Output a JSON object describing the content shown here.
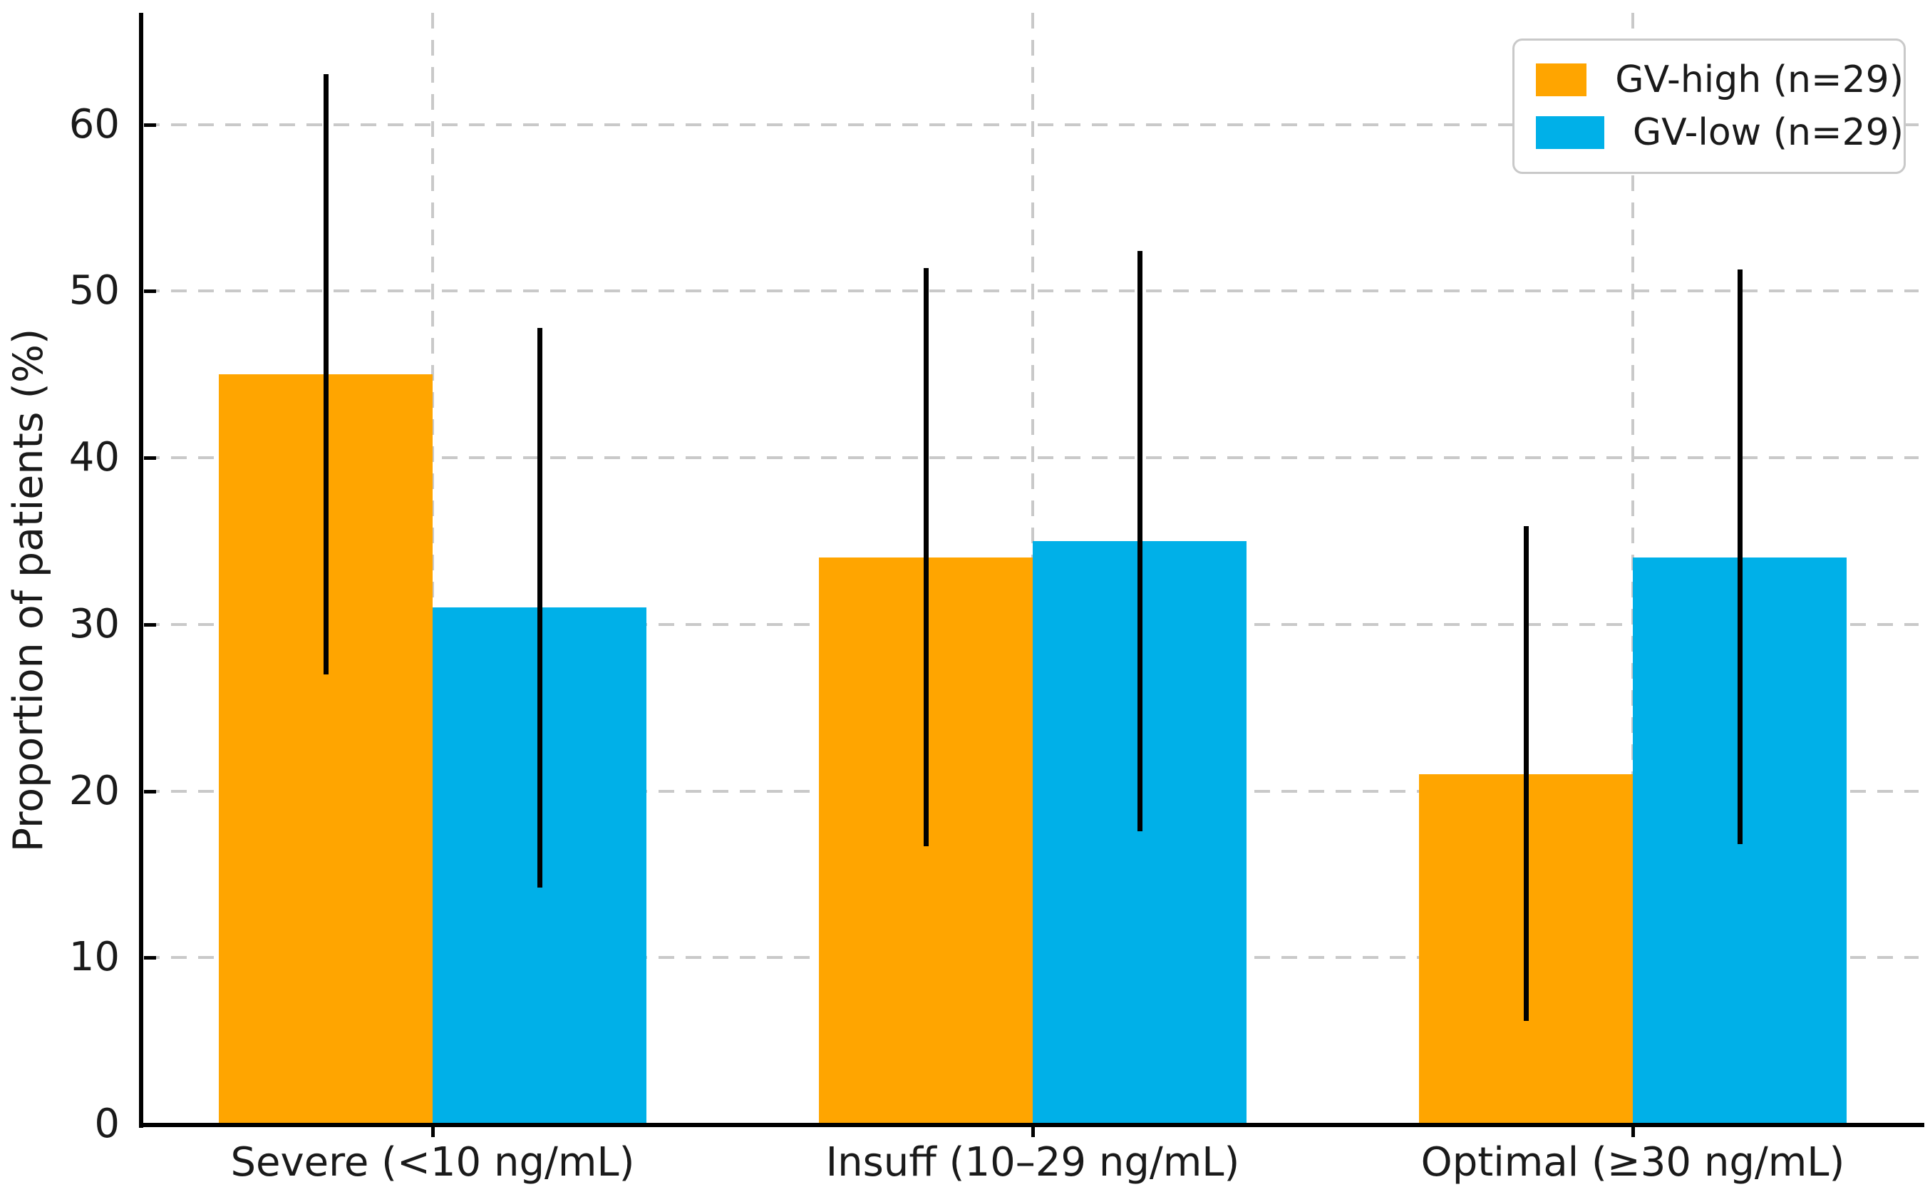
{
  "chart_data": {
    "type": "bar",
    "title": "",
    "xlabel": "",
    "ylabel": "Proportion of patients (%)",
    "ylim": [
      0,
      66.7
    ],
    "yticks": [
      0,
      10,
      20,
      30,
      40,
      50,
      60
    ],
    "categories": [
      "Severe (<10 ng/mL)",
      "Insuff (10–29 ng/mL)",
      "Optimal (≥30 ng/mL)"
    ],
    "series": [
      {
        "name": "GV-high (n=29)",
        "color": "#FFA500",
        "values": [
          45,
          34,
          21
        ],
        "err_low": [
          27.0,
          16.7,
          6.2
        ],
        "err_high": [
          63.0,
          51.4,
          35.9
        ]
      },
      {
        "name": "GV-low (n=29)",
        "color": "#00B0E8",
        "values": [
          31,
          35,
          34
        ],
        "err_low": [
          14.2,
          17.6,
          16.8
        ],
        "err_high": [
          47.8,
          52.4,
          51.3
        ]
      }
    ],
    "legend_position": "upper right",
    "grid": "dashed horizontal at y ticks and vertical at category centers",
    "error_bar_style": "vertical black line, no caps"
  },
  "colors": {
    "background": "#ffffff",
    "grid": "#c9c9c9",
    "axis": "#000000",
    "text": "#1a1a1a",
    "legend_border": "#c9c9c9"
  }
}
